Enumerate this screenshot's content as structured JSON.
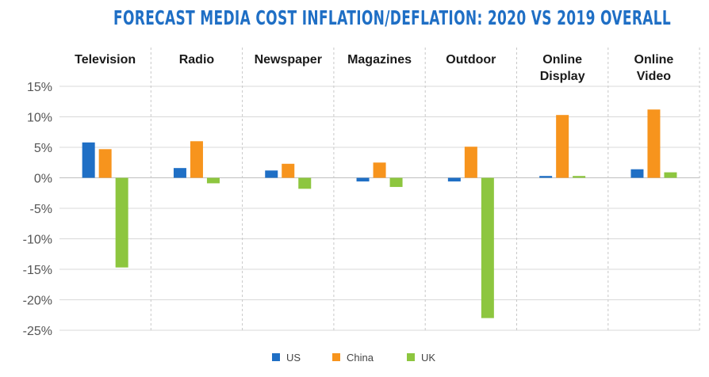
{
  "chart_data": {
    "type": "bar",
    "title": "FORECAST MEDIA COST INFLATION/DEFLATION: 2020 VS 2019 OVERALL",
    "categories": [
      [
        "Television"
      ],
      [
        "Radio"
      ],
      [
        "Newspaper"
      ],
      [
        "Magazines"
      ],
      [
        "Outdoor"
      ],
      [
        "Online",
        "Display"
      ],
      [
        "Online",
        "Video"
      ]
    ],
    "series": [
      {
        "name": "US",
        "color": "#1f6fc5",
        "values": [
          5.8,
          1.6,
          1.2,
          -0.6,
          -0.6,
          0.3,
          1.4
        ]
      },
      {
        "name": "China",
        "color": "#f7941d",
        "values": [
          4.7,
          6.0,
          2.3,
          2.5,
          5.1,
          10.3,
          11.2
        ]
      },
      {
        "name": "UK",
        "color": "#8dc63f",
        "values": [
          -14.7,
          -0.9,
          -1.8,
          -1.5,
          -23.0,
          0.3,
          0.9
        ]
      }
    ],
    "yticks": [
      15,
      10,
      5,
      0,
      -5,
      -10,
      -15,
      -20,
      -25
    ],
    "ytick_labels": [
      "15%",
      "10%",
      "5%",
      "0%",
      "-5%",
      "-10%",
      "-15%",
      "-20%",
      "-25%"
    ],
    "ylim": [
      -25,
      15
    ],
    "grid": true,
    "legend_position": "bottom"
  }
}
